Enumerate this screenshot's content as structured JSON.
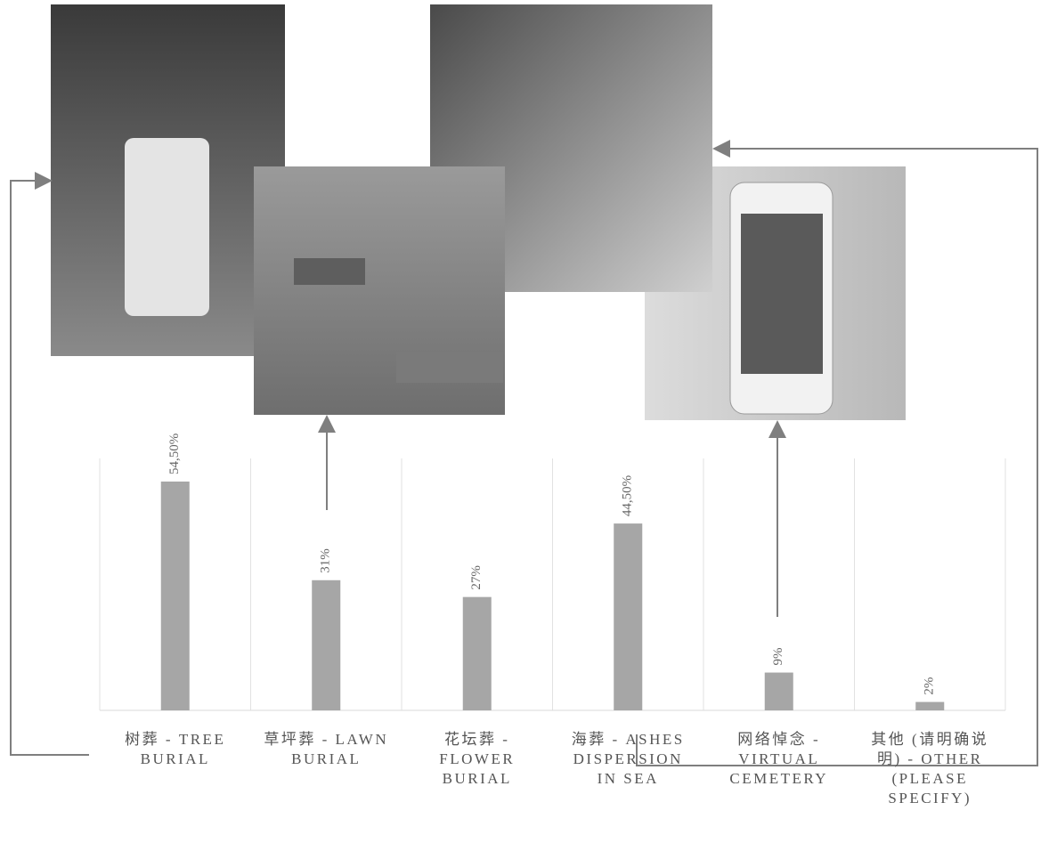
{
  "chart_data": {
    "type": "bar",
    "categories": [
      "树葬 - TREE BURIAL",
      "草坪葬 - LAWN BURIAL",
      "花坛葬 - FLOWER BURIAL",
      "海葬 - ASHES DISPERSION IN SEA",
      "网络悼念 - VIRTUAL CEMETERY",
      "其他 (请明确说明) - OTHER (PLEASE SPECIFY)"
    ],
    "values": [
      54.5,
      31,
      27,
      44.5,
      9,
      2
    ],
    "value_labels": [
      "54,50%",
      "31%",
      "27%",
      "44,50%",
      "9%",
      "2%"
    ],
    "color": "#a6a6a6",
    "ylim": [
      0,
      60
    ]
  }
}
